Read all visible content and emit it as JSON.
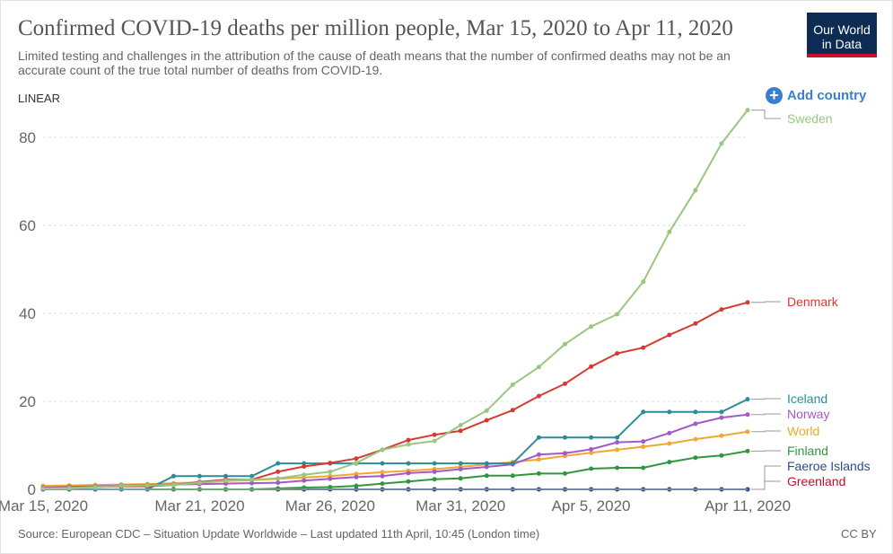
{
  "header": {
    "title": "Confirmed COVID-19 deaths per million people, Mar 15, 2020 to Apr 11, 2020",
    "subtitle": "Limited testing and challenges in the attribution of the cause of death means that the number of confirmed deaths may not be an accurate count of the true total number of deaths from COVID-19.",
    "logo_line1": "Our World",
    "logo_line2": "in Data",
    "scale_label": "LINEAR",
    "add_country_label": "Add country"
  },
  "footer": {
    "source": "Source: European CDC – Situation Update Worldwide – Last updated 11th April, 10:45 (London time)",
    "license": "CC BY"
  },
  "colors": {
    "Sweden": "#99c77e",
    "Denmark": "#d63a33",
    "Iceland": "#2c8c98",
    "Norway": "#a459c7",
    "World": "#f0a830",
    "Finland": "#32963f",
    "Faeroe Islands": "#2c4d8a",
    "Greenland": "#b5142c"
  },
  "chart_data": {
    "type": "line",
    "title": "Confirmed COVID-19 deaths per million people, Mar 15, 2020 to Apr 11, 2020",
    "x": [
      "2020-03-15",
      "2020-03-16",
      "2020-03-17",
      "2020-03-18",
      "2020-03-19",
      "2020-03-20",
      "2020-03-21",
      "2020-03-22",
      "2020-03-23",
      "2020-03-24",
      "2020-03-25",
      "2020-03-26",
      "2020-03-27",
      "2020-03-28",
      "2020-03-29",
      "2020-03-30",
      "2020-03-31",
      "2020-04-01",
      "2020-04-02",
      "2020-04-03",
      "2020-04-04",
      "2020-04-05",
      "2020-04-06",
      "2020-04-07",
      "2020-04-08",
      "2020-04-09",
      "2020-04-10",
      "2020-04-11"
    ],
    "x_tick_labels": [
      "Mar 15, 2020",
      "Mar 21, 2020",
      "Mar 26, 2020",
      "Mar 31, 2020",
      "Apr 5, 2020",
      "Apr 11, 2020"
    ],
    "x_tick_dates": [
      "2020-03-15",
      "2020-03-21",
      "2020-03-26",
      "2020-03-31",
      "2020-04-05",
      "2020-04-11"
    ],
    "y_ticks": [
      0,
      20,
      40,
      60,
      80
    ],
    "ylim": [
      0,
      88
    ],
    "grid": true,
    "legend": "right, labels at line ends",
    "series": [
      {
        "name": "Sweden",
        "values": [
          0.2,
          0.3,
          0.5,
          0.8,
          0.9,
          1.0,
          1.5,
          2.0,
          2.2,
          2.5,
          3.3,
          4.0,
          6.0,
          9.0,
          10.2,
          11.0,
          14.6,
          17.9,
          23.8,
          27.8,
          33.0,
          37.0,
          39.8,
          47.2,
          58.5,
          68.0,
          78.6,
          86.2
        ]
      },
      {
        "name": "Denmark",
        "values": [
          0.2,
          0.3,
          0.5,
          0.7,
          0.7,
          1.0,
          1.7,
          2.2,
          2.2,
          4.0,
          5.2,
          6.0,
          7.0,
          9.0,
          11.2,
          12.4,
          13.3,
          15.7,
          18.0,
          21.2,
          24.0,
          27.9,
          30.9,
          32.2,
          35.1,
          37.7,
          40.9,
          42.5
        ]
      },
      {
        "name": "Iceland",
        "values": [
          0,
          0,
          0,
          0,
          0,
          3.0,
          3.0,
          3.0,
          3.0,
          5.9,
          5.9,
          5.9,
          5.9,
          5.9,
          5.9,
          5.9,
          5.9,
          5.9,
          5.9,
          11.8,
          11.8,
          11.8,
          11.8,
          17.6,
          17.6,
          17.6,
          17.6,
          20.5
        ]
      },
      {
        "name": "Norway",
        "values": [
          0.4,
          0.6,
          0.7,
          0.9,
          1.0,
          1.1,
          1.2,
          1.3,
          1.4,
          1.5,
          2.0,
          2.4,
          2.8,
          3.0,
          3.7,
          4.0,
          4.6,
          5.1,
          5.7,
          7.9,
          8.2,
          9.1,
          10.7,
          10.9,
          12.8,
          14.9,
          16.3,
          17.0
        ]
      },
      {
        "name": "World",
        "values": [
          0.8,
          0.9,
          1.0,
          1.1,
          1.2,
          1.4,
          1.6,
          1.9,
          2.1,
          2.4,
          2.7,
          3.0,
          3.5,
          3.9,
          4.2,
          4.6,
          5.1,
          5.7,
          6.2,
          6.8,
          7.6,
          8.3,
          9.0,
          9.7,
          10.4,
          11.4,
          12.2,
          13.1
        ]
      },
      {
        "name": "Finland",
        "values": [
          0,
          0,
          0,
          0,
          0,
          0,
          0,
          0,
          0,
          0.2,
          0.4,
          0.5,
          0.8,
          1.3,
          1.8,
          2.3,
          2.5,
          3.1,
          3.1,
          3.6,
          3.6,
          4.7,
          4.9,
          4.9,
          6.2,
          7.2,
          7.7,
          8.7
        ]
      },
      {
        "name": "Faeroe Islands",
        "values": [
          0,
          0,
          0,
          0,
          0,
          0,
          0,
          0,
          0,
          0,
          0,
          0,
          0,
          0,
          0,
          0,
          0,
          0,
          0,
          0,
          0,
          0,
          0,
          0,
          0,
          0,
          0,
          0
        ]
      },
      {
        "name": "Greenland",
        "values": [
          0,
          0,
          0,
          0,
          0,
          0,
          0,
          0,
          0,
          0,
          0,
          0,
          0,
          0,
          0,
          0,
          0,
          0,
          0,
          0,
          0,
          0,
          0,
          0,
          0,
          0,
          0,
          0
        ]
      }
    ]
  }
}
